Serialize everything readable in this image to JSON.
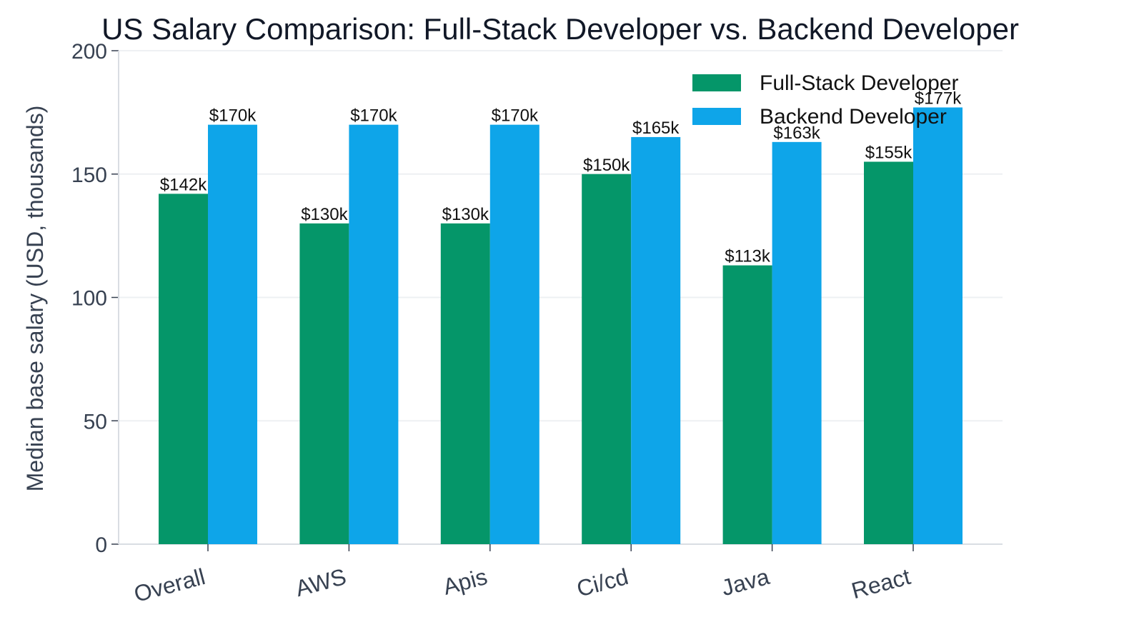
{
  "chart_data": {
    "type": "bar",
    "title": "US Salary Comparison: Full-Stack Developer vs. Backend Developer",
    "xlabel": "",
    "ylabel": "Median base salary (USD, thousands)",
    "ylim": [
      0,
      200
    ],
    "yticks": [
      0,
      50,
      100,
      150,
      200
    ],
    "grid": true,
    "legend_position": "top-right",
    "categories": [
      "Overall",
      "AWS",
      "Apis",
      "Ci/cd",
      "Java",
      "React"
    ],
    "series": [
      {
        "name": "Full-Stack Developer",
        "color": "#059669",
        "values": [
          142,
          130,
          130,
          150,
          113,
          155
        ],
        "labels": [
          "$142k",
          "$130k",
          "$130k",
          "$150k",
          "$113k",
          "$155k"
        ]
      },
      {
        "name": "Backend Developer",
        "color": "#0ea5e9",
        "values": [
          170,
          170,
          170,
          165,
          163,
          177
        ],
        "labels": [
          "$170k",
          "$170k",
          "$170k",
          "$165k",
          "$163k",
          "$177k"
        ]
      }
    ]
  }
}
